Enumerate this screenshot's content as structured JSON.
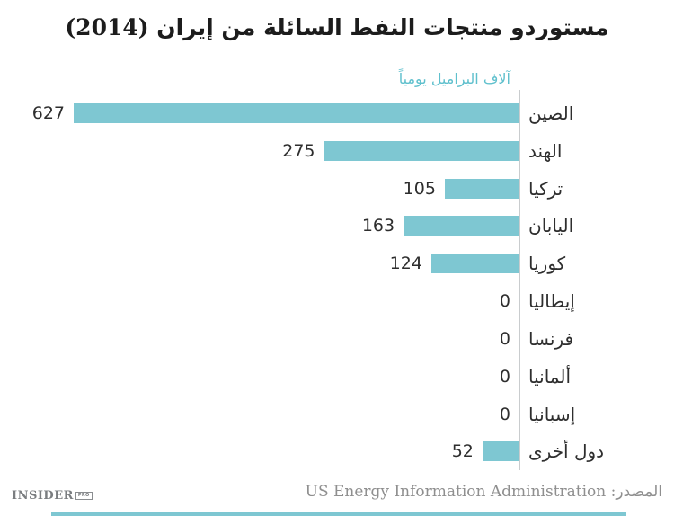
{
  "title": "مستوردو منتجات النفط السائلة من إيران (2014)",
  "axis_caption": "آلاف البراميل يومياً",
  "source": {
    "label": "المصدر: US Energy Information Administration"
  },
  "logo": {
    "main": "INSIDER",
    "badge": "PRO"
  },
  "colors": {
    "bar": "#7ec7d2",
    "axis_caption": "#5fc0cd",
    "axis_line": "#c9ccce",
    "title_text": "#1c1c1c",
    "label_text": "#2e2e2e",
    "source_text": "#8f8f8f",
    "footer_strip": "#7ec7d2"
  },
  "chart_data": {
    "type": "bar",
    "orientation": "horizontal",
    "direction": "rtl",
    "title": "مستوردو منتجات النفط السائلة من إيران (2014)",
    "xlabel": "آلاف البراميل يومياً",
    "categories": [
      "الصين",
      "الهند",
      "تركيا",
      "اليابان",
      "كوريا",
      "إيطاليا",
      "فرنسا",
      "ألمانيا",
      "إسبانيا",
      "دول أخرى"
    ],
    "values": [
      627,
      275,
      105,
      163,
      124,
      0,
      0,
      0,
      0,
      52
    ],
    "xlim": [
      0,
      627
    ],
    "grid": false,
    "legend": false,
    "value_labels": "outside-end"
  }
}
